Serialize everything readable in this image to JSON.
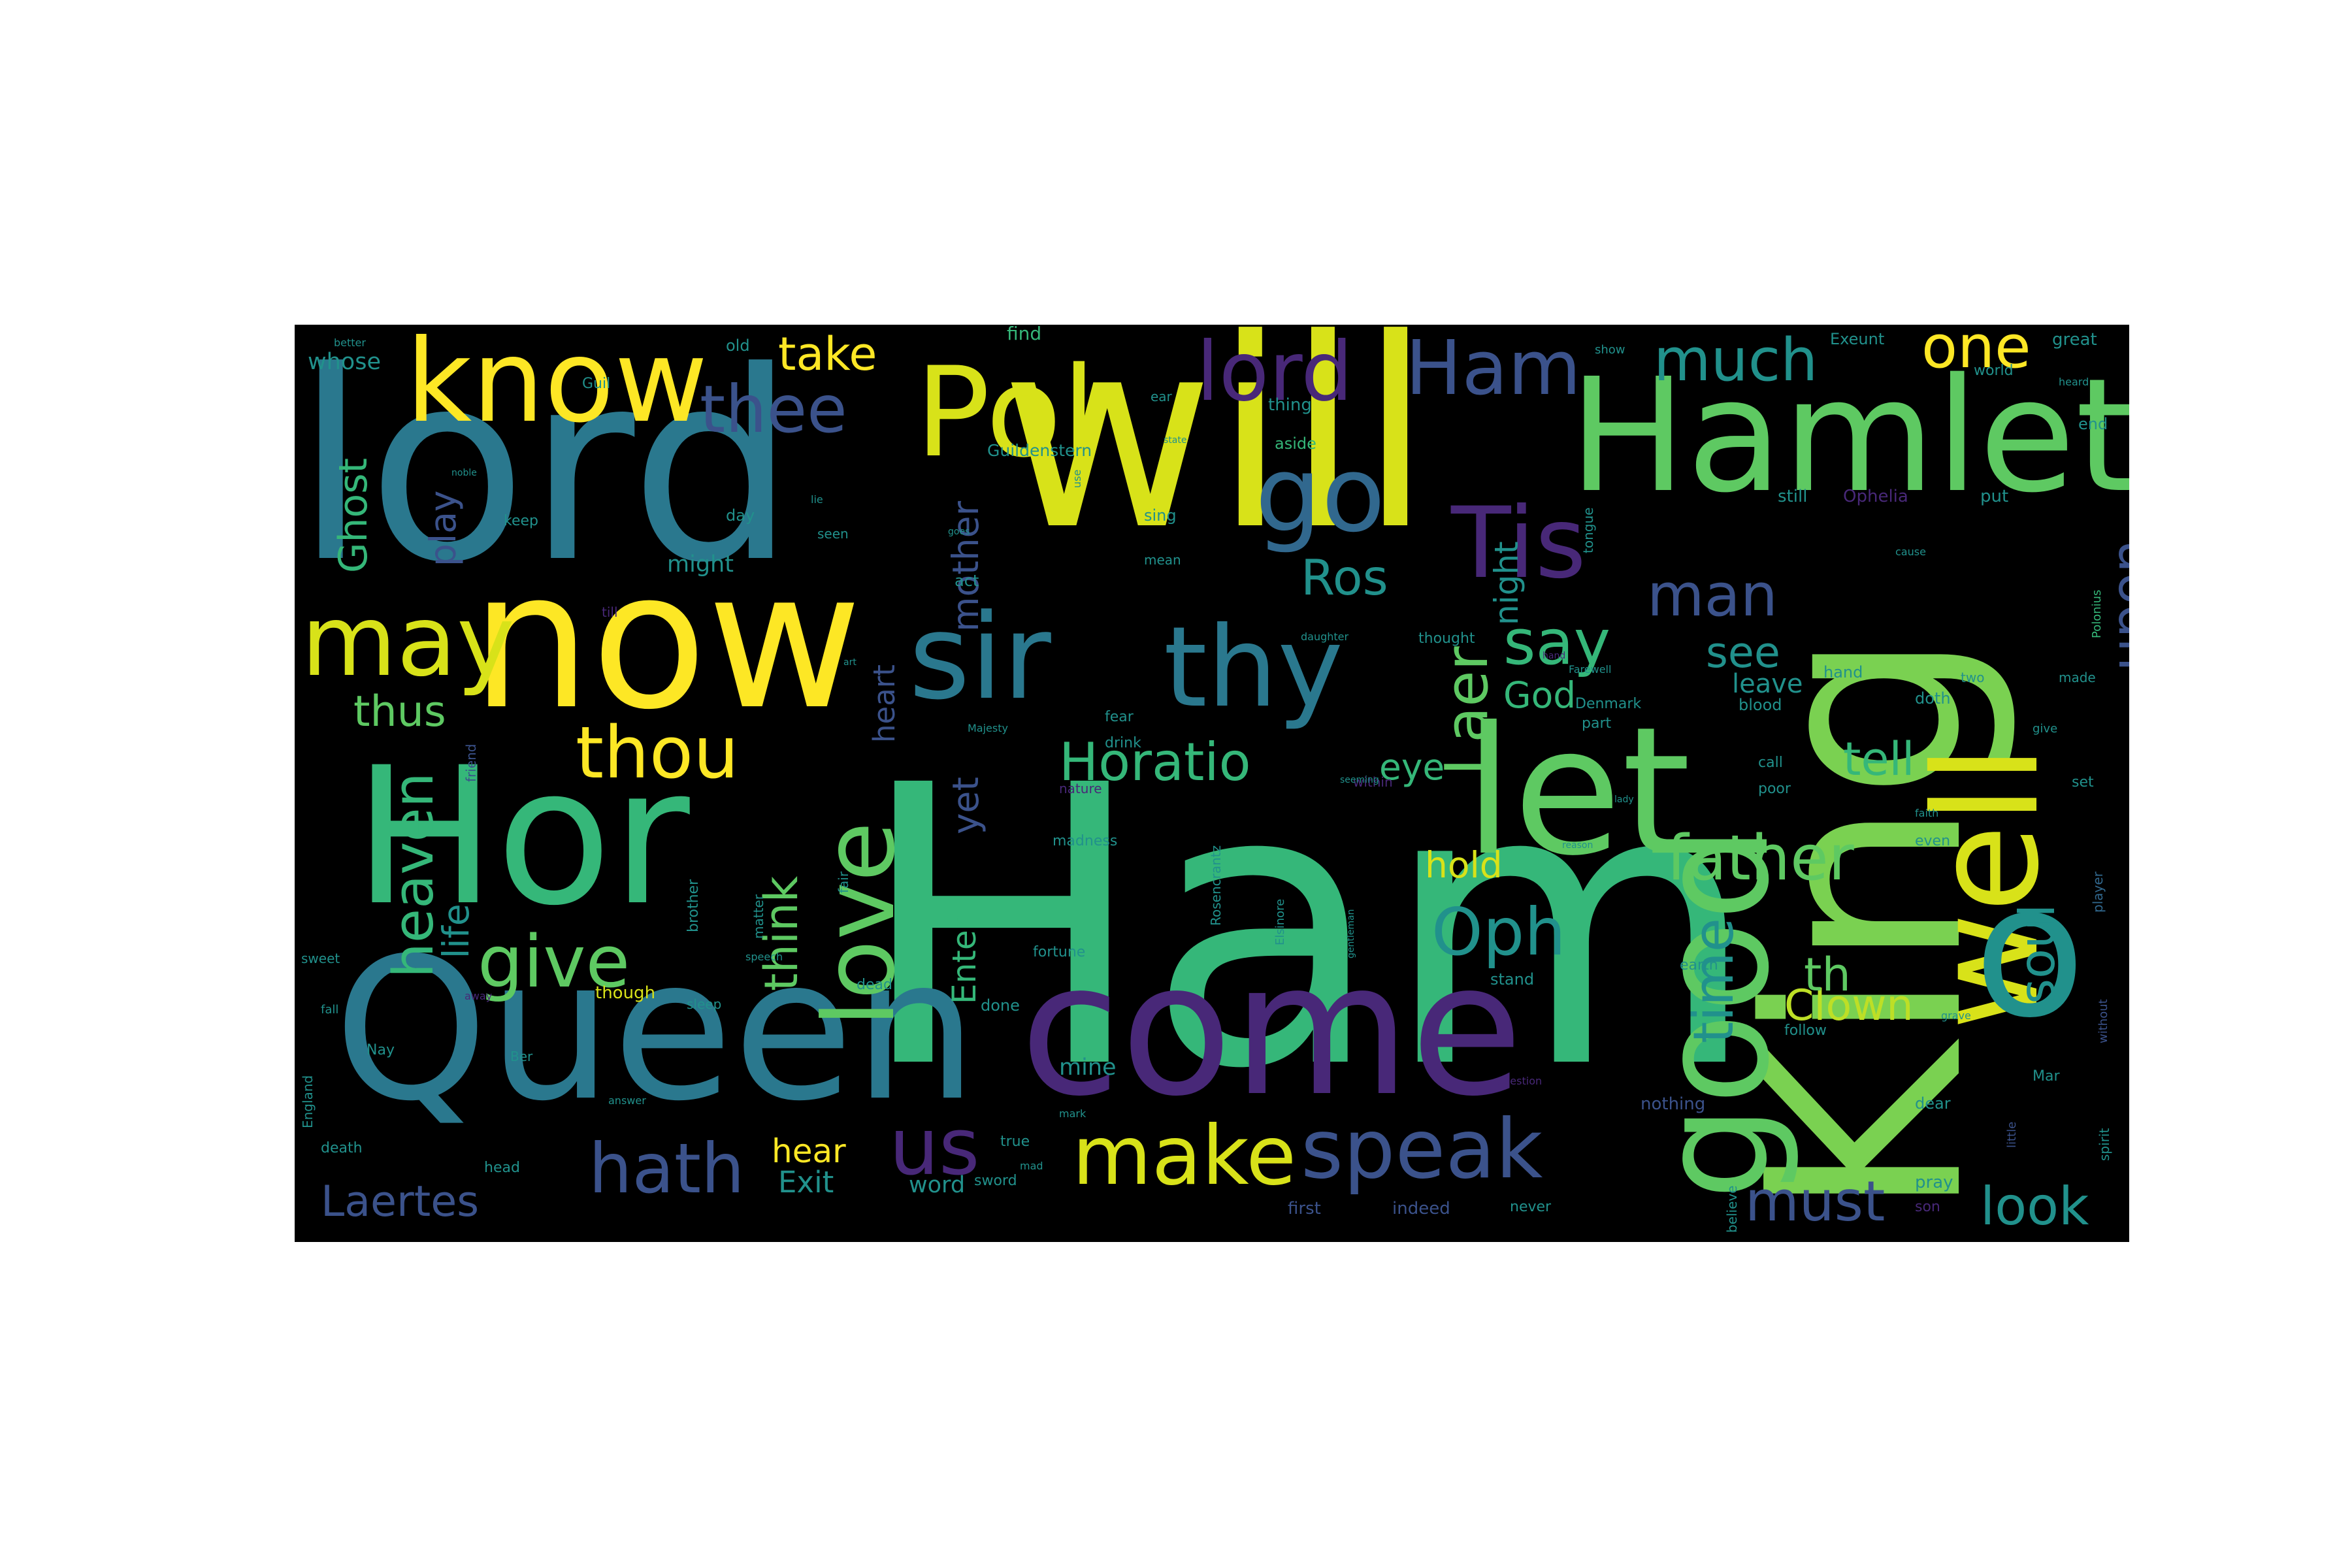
{
  "wordcloud": {
    "background": "#000000",
    "palette": {
      "viridis_purple": "#440154",
      "viridis_indigo": "#3b528b",
      "viridis_teal": "#21918c",
      "viridis_green": "#5ec962",
      "viridis_lime": "#7ad151",
      "viridis_yellow": "#fde725"
    },
    "words": [
      {
        "text": "Ham",
        "color": "#35b779"
      },
      {
        "text": "will",
        "color": "#d8e219"
      },
      {
        "text": "lord",
        "color": "#2a788e"
      },
      {
        "text": "King",
        "color": "#7ad151"
      },
      {
        "text": "Queen",
        "color": "#2a788e"
      },
      {
        "text": "come",
        "color": "#482878"
      },
      {
        "text": "now",
        "color": "#fde725"
      },
      {
        "text": "Hor",
        "color": "#35b779"
      },
      {
        "text": "Hamlet",
        "color": "#5ec962"
      },
      {
        "text": "let",
        "color": "#5ec962"
      },
      {
        "text": "good",
        "color": "#5ec962"
      },
      {
        "text": "well",
        "color": "#d8e219"
      },
      {
        "text": "o",
        "color": "#21918c"
      },
      {
        "text": "know",
        "color": "#fde725"
      },
      {
        "text": "Pol",
        "color": "#d8e219"
      },
      {
        "text": "sir",
        "color": "#2a788e"
      },
      {
        "text": "thy",
        "color": "#2a788e"
      },
      {
        "text": "love",
        "color": "#5ec962"
      },
      {
        "text": "may",
        "color": "#d8e219"
      },
      {
        "text": "go",
        "color": "#31688e"
      },
      {
        "text": "lord",
        "color": "#482878"
      },
      {
        "text": "Ham",
        "color": "#3b528b"
      },
      {
        "text": "Tis",
        "color": "#482878"
      },
      {
        "text": "thee",
        "color": "#3b528b"
      },
      {
        "text": "thou",
        "color": "#fde725"
      },
      {
        "text": "much",
        "color": "#21918c"
      },
      {
        "text": "one",
        "color": "#fde725"
      },
      {
        "text": "Laer",
        "color": "#5ec962"
      },
      {
        "text": "make",
        "color": "#d8e219"
      },
      {
        "text": "speak",
        "color": "#3b528b"
      },
      {
        "text": "hath",
        "color": "#3b528b"
      },
      {
        "text": "give",
        "color": "#5ec962"
      },
      {
        "text": "father",
        "color": "#5ec962"
      },
      {
        "text": "say",
        "color": "#35b779"
      },
      {
        "text": "man",
        "color": "#3b528b"
      },
      {
        "text": "upon",
        "color": "#3b528b"
      },
      {
        "text": "us",
        "color": "#482878"
      },
      {
        "text": "must",
        "color": "#3b528b"
      },
      {
        "text": "look",
        "color": "#21918c"
      },
      {
        "text": "Oph",
        "color": "#21918c"
      },
      {
        "text": "Horatio",
        "color": "#35b779"
      },
      {
        "text": "heaven",
        "color": "#35b779"
      },
      {
        "text": "time",
        "color": "#21918c"
      },
      {
        "text": "soul",
        "color": "#21918c"
      },
      {
        "text": "Ros",
        "color": "#21918c"
      },
      {
        "text": "see",
        "color": "#21918c"
      },
      {
        "text": "take",
        "color": "#fde725"
      },
      {
        "text": "Clown",
        "color": "#bddf26"
      },
      {
        "text": "think",
        "color": "#5ec962"
      },
      {
        "text": "Laertes",
        "color": "#3b528b"
      },
      {
        "text": "tell",
        "color": "#35b779"
      },
      {
        "text": "th",
        "color": "#5ec962"
      },
      {
        "text": "thus",
        "color": "#5ec962"
      },
      {
        "text": "Ghost",
        "color": "#35b779"
      },
      {
        "text": "play",
        "color": "#3b528b"
      },
      {
        "text": "hold",
        "color": "#d8e219"
      },
      {
        "text": "eye",
        "color": "#35b779"
      },
      {
        "text": "God",
        "color": "#35b779"
      },
      {
        "text": "life",
        "color": "#21918c"
      },
      {
        "text": "mother",
        "color": "#3b528b"
      },
      {
        "text": "yet",
        "color": "#3b528b"
      },
      {
        "text": "night",
        "color": "#21918c"
      },
      {
        "text": "hear",
        "color": "#fde725"
      },
      {
        "text": "Exit",
        "color": "#21918c"
      },
      {
        "text": "Enter",
        "color": "#35b779"
      },
      {
        "text": "heart",
        "color": "#3b528b"
      },
      {
        "text": "leave",
        "color": "#21918c"
      },
      {
        "text": "whose",
        "color": "#21918c"
      },
      {
        "text": "might",
        "color": "#21918c"
      },
      {
        "text": "mine",
        "color": "#21918c"
      },
      {
        "text": "word",
        "color": "#21918c"
      },
      {
        "text": "Guildenstern",
        "color": "#21918c"
      },
      {
        "text": "Polonius",
        "color": "#35b779"
      },
      {
        "text": "player",
        "color": "#31688e"
      },
      {
        "text": "done",
        "color": "#21918c"
      },
      {
        "text": "fortune",
        "color": "#21918c"
      },
      {
        "text": "madness",
        "color": "#21918c"
      },
      {
        "text": "thought",
        "color": "#21918c"
      },
      {
        "text": "Rosencrantz",
        "color": "#21918c"
      },
      {
        "text": "Elsinore",
        "color": "#21918c"
      },
      {
        "text": "though",
        "color": "#d8e219"
      },
      {
        "text": "drink",
        "color": "#21918c"
      },
      {
        "text": "fear",
        "color": "#21918c"
      },
      {
        "text": "aside",
        "color": "#35b779"
      },
      {
        "text": "still",
        "color": "#21918c"
      },
      {
        "text": "put",
        "color": "#21918c"
      },
      {
        "text": "Ophelia",
        "color": "#482878"
      },
      {
        "text": "day",
        "color": "#21918c"
      },
      {
        "text": "keep",
        "color": "#21918c"
      },
      {
        "text": "sing",
        "color": "#21918c"
      },
      {
        "text": "seen",
        "color": "#21918c"
      },
      {
        "text": "act",
        "color": "#21918c"
      },
      {
        "text": "mean",
        "color": "#21918c"
      },
      {
        "text": "death",
        "color": "#21918c"
      },
      {
        "text": "head",
        "color": "#21918c"
      },
      {
        "text": "Nay",
        "color": "#21918c"
      },
      {
        "text": "old",
        "color": "#21918c"
      },
      {
        "text": "find",
        "color": "#35b779"
      },
      {
        "text": "Exeunt",
        "color": "#21918c"
      },
      {
        "text": "great",
        "color": "#21918c"
      },
      {
        "text": "world",
        "color": "#21918c"
      },
      {
        "text": "show",
        "color": "#21918c"
      },
      {
        "text": "end",
        "color": "#21918c"
      },
      {
        "text": "doth",
        "color": "#21918c"
      },
      {
        "text": "blood",
        "color": "#21918c"
      },
      {
        "text": "hand",
        "color": "#21918c"
      },
      {
        "text": "made",
        "color": "#21918c"
      },
      {
        "text": "set",
        "color": "#21918c"
      },
      {
        "text": "even",
        "color": "#21918c"
      },
      {
        "text": "call",
        "color": "#21918c"
      },
      {
        "text": "poor",
        "color": "#21918c"
      },
      {
        "text": "part",
        "color": "#21918c"
      },
      {
        "text": "Denmark",
        "color": "#21918c"
      },
      {
        "text": "nothing",
        "color": "#3b528b"
      },
      {
        "text": "dear",
        "color": "#21918c"
      },
      {
        "text": "follow",
        "color": "#21918c"
      },
      {
        "text": "stand",
        "color": "#21918c"
      },
      {
        "text": "earth",
        "color": "#21918c"
      },
      {
        "text": "true",
        "color": "#21918c"
      },
      {
        "text": "dead",
        "color": "#21918c"
      },
      {
        "text": "pray",
        "color": "#21918c"
      },
      {
        "text": "son",
        "color": "#482878"
      },
      {
        "text": "first",
        "color": "#3b528b"
      },
      {
        "text": "indeed",
        "color": "#3b528b"
      },
      {
        "text": "never",
        "color": "#21918c"
      },
      {
        "text": "believe",
        "color": "#21918c"
      },
      {
        "text": "England",
        "color": "#21918c"
      },
      {
        "text": "sleep",
        "color": "#21918c"
      },
      {
        "text": "sweet",
        "color": "#21918c"
      },
      {
        "text": "brother",
        "color": "#21918c"
      },
      {
        "text": "matter",
        "color": "#21918c"
      },
      {
        "text": "fair",
        "color": "#21918c"
      },
      {
        "text": "friend",
        "color": "#3b528b"
      },
      {
        "text": "nature",
        "color": "#482878"
      },
      {
        "text": "within",
        "color": "#482878"
      },
      {
        "text": "Mar",
        "color": "#21918c"
      },
      {
        "text": "spirit",
        "color": "#21918c"
      },
      {
        "text": "little",
        "color": "#3b528b"
      },
      {
        "text": "without",
        "color": "#3b528b"
      },
      {
        "text": "tongue",
        "color": "#21918c"
      },
      {
        "text": "Farewell",
        "color": "#21918c"
      },
      {
        "text": "two",
        "color": "#21918c"
      },
      {
        "text": "give",
        "color": "#21918c"
      },
      {
        "text": "Guil",
        "color": "#21918c"
      },
      {
        "text": "speech",
        "color": "#21918c"
      },
      {
        "text": "fall",
        "color": "#21918c"
      },
      {
        "text": "lady",
        "color": "#21918c"
      },
      {
        "text": "gentleman",
        "color": "#21918c"
      },
      {
        "text": "reason",
        "color": "#21918c"
      },
      {
        "text": "faith",
        "color": "#21918c"
      },
      {
        "text": "grave",
        "color": "#21918c"
      },
      {
        "text": "question",
        "color": "#482878"
      },
      {
        "text": "answer",
        "color": "#21918c"
      },
      {
        "text": "daughter",
        "color": "#21918c"
      },
      {
        "text": "Majesty",
        "color": "#21918c"
      },
      {
        "text": "better",
        "color": "#21918c"
      },
      {
        "text": "thing",
        "color": "#21918c"
      },
      {
        "text": "state",
        "color": "#21918c"
      },
      {
        "text": "noble",
        "color": "#21918c"
      },
      {
        "text": "goes",
        "color": "#21918c"
      },
      {
        "text": "heard",
        "color": "#21918c"
      },
      {
        "text": "ear",
        "color": "#21918c"
      },
      {
        "text": "use",
        "color": "#21918c"
      },
      {
        "text": "seeming",
        "color": "#21918c"
      },
      {
        "text": "away",
        "color": "#482878"
      },
      {
        "text": "cause",
        "color": "#21918c"
      },
      {
        "text": "mark",
        "color": "#21918c"
      },
      {
        "text": "mad",
        "color": "#21918c"
      },
      {
        "text": "sword",
        "color": "#21918c"
      },
      {
        "text": "art",
        "color": "#21918c"
      },
      {
        "text": "till",
        "color": "#482878"
      },
      {
        "text": "lie",
        "color": "#21918c"
      },
      {
        "text": "Ber",
        "color": "#21918c"
      },
      {
        "text": "hand",
        "color": "#482878"
      }
    ]
  }
}
